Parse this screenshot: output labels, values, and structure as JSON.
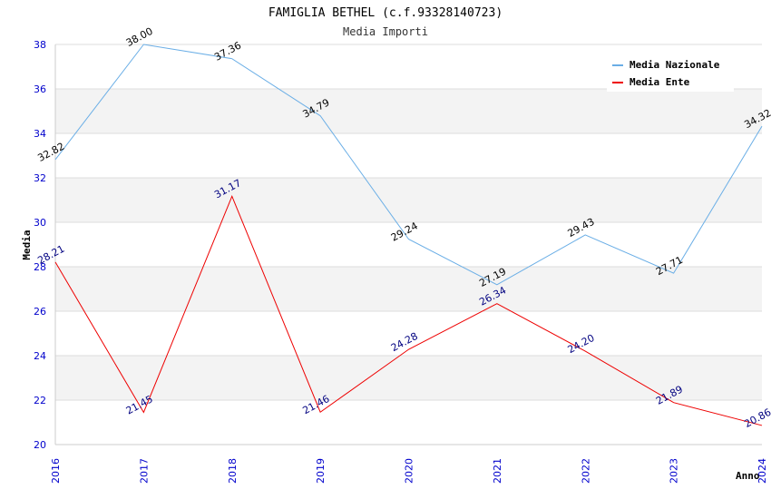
{
  "chart_data": {
    "type": "line",
    "title": "FAMIGLIA BETHEL (c.f.93328140723)",
    "subtitle": "Media Importi",
    "xlabel": "Anno",
    "ylabel": "Media",
    "x": [
      "2016",
      "2017",
      "2018",
      "2019",
      "2020",
      "2021",
      "2022",
      "2023",
      "2024"
    ],
    "ylim": [
      20,
      38
    ],
    "yticks": [
      "20",
      "22",
      "24",
      "26",
      "28",
      "30",
      "32",
      "34",
      "36",
      "38"
    ],
    "grid": true,
    "legend_position": "top-right",
    "series": [
      {
        "name": "Media Nazionale",
        "color": "#6aaee6",
        "label_color": "#000000",
        "values": [
          32.82,
          38.0,
          37.36,
          34.79,
          29.24,
          27.19,
          29.43,
          27.71,
          34.32
        ],
        "labels": [
          "32.82",
          "38.00",
          "37.36",
          "34.79",
          "29.24",
          "27.19",
          "29.43",
          "27.71",
          "34.32"
        ]
      },
      {
        "name": "Media Ente",
        "color": "#ee0000",
        "label_color": "#000080",
        "values": [
          28.21,
          21.45,
          31.17,
          21.46,
          24.28,
          26.34,
          24.2,
          21.89,
          20.86
        ],
        "labels": [
          "28.21",
          "21.45",
          "31.17",
          "21.46",
          "24.28",
          "26.34",
          "24.20",
          "21.89",
          "20.86"
        ]
      }
    ]
  }
}
